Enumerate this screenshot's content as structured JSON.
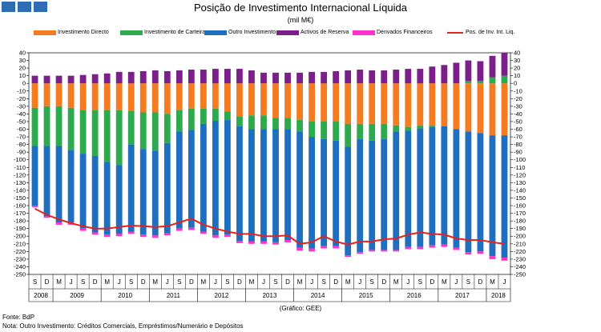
{
  "header": {
    "logo_icon": "bank-logo-squares-icon",
    "logo_color": "#2e6cb5"
  },
  "chart_data": {
    "type": "bar",
    "title": "Posição de Investimento Internacional Líquida",
    "subtitle": "(mil M€)",
    "stacked": true,
    "ylim": [
      -250,
      40
    ],
    "yticks_step": 10,
    "categories": [
      "2008-S",
      "2008-D",
      "2009-M",
      "2009-J",
      "2009-S",
      "2009-D",
      "2010-M",
      "2010-J",
      "2010-S",
      "2010-D",
      "2011-M",
      "2011-J",
      "2011-S",
      "2011-D",
      "2012-M",
      "2012-J",
      "2012-S",
      "2012-D",
      "2013-M",
      "2013-J",
      "2013-S",
      "2013-D",
      "2014-M",
      "2014-J",
      "2014-S",
      "2014-D",
      "2015-M",
      "2015-J",
      "2015-S",
      "2015-D",
      "2016-M",
      "2016-J",
      "2016-S",
      "2016-D",
      "2017-M",
      "2017-J",
      "2017-S",
      "2017-D",
      "2018-M",
      "2018-J"
    ],
    "tick_labels": [
      "S",
      "D",
      "M",
      "J",
      "S",
      "D",
      "M",
      "J",
      "S",
      "D",
      "M",
      "J",
      "S",
      "D",
      "M",
      "J",
      "S",
      "D",
      "M",
      "J",
      "S",
      "D",
      "M",
      "J",
      "S",
      "D",
      "M",
      "J",
      "S",
      "D",
      "M",
      "J",
      "S",
      "D",
      "M",
      "J",
      "S",
      "D",
      "M",
      "J"
    ],
    "year_labels": [
      {
        "label": "2008",
        "start": 0,
        "end": 1
      },
      {
        "label": "2009",
        "start": 2,
        "end": 5
      },
      {
        "label": "2010",
        "start": 6,
        "end": 9
      },
      {
        "label": "2011",
        "start": 10,
        "end": 13
      },
      {
        "label": "2012",
        "start": 14,
        "end": 17
      },
      {
        "label": "2013",
        "start": 18,
        "end": 21
      },
      {
        "label": "2014",
        "start": 22,
        "end": 25
      },
      {
        "label": "2015",
        "start": 26,
        "end": 29
      },
      {
        "label": "2016",
        "start": 30,
        "end": 33
      },
      {
        "label": "2017",
        "start": 34,
        "end": 37
      },
      {
        "label": "2018",
        "start": 38,
        "end": 39
      }
    ],
    "series": [
      {
        "name": "Investimento Directo",
        "kind": "bar",
        "color": "#f47b20",
        "values": [
          -32,
          -30,
          -30,
          -32,
          -35,
          -35,
          -35,
          -35,
          -36,
          -38,
          -38,
          -40,
          -35,
          -33,
          -33,
          -33,
          -37,
          -43,
          -42,
          -42,
          -45,
          -45,
          -48,
          -50,
          -50,
          -50,
          -53,
          -53,
          -53,
          -53,
          -55,
          -57,
          -55,
          -55,
          -56,
          -60,
          -63,
          -65,
          -68,
          -68
        ]
      },
      {
        "name": "Investimento de Carteira",
        "kind": "bar",
        "color": "#2eaa4e",
        "values": [
          -50,
          -52,
          -52,
          -55,
          -57,
          -60,
          -68,
          -72,
          -44,
          -48,
          -50,
          -38,
          -28,
          -28,
          -20,
          -16,
          -11,
          -13,
          -18,
          -18,
          -15,
          -15,
          -15,
          -20,
          -23,
          -25,
          -30,
          -20,
          -22,
          -20,
          -8,
          -5,
          -4,
          -2,
          0,
          0,
          3,
          3,
          8,
          10
        ]
      },
      {
        "name": "Outro Investimento",
        "kind": "bar",
        "color": "#1f6fc0",
        "values": [
          -78,
          -92,
          -100,
          -95,
          -98,
          -100,
          -95,
          -90,
          -114,
          -112,
          -111,
          -118,
          -127,
          -128,
          -141,
          -150,
          -150,
          -150,
          -147,
          -147,
          -148,
          -145,
          -152,
          -146,
          -140,
          -138,
          -142,
          -148,
          -143,
          -145,
          -155,
          -152,
          -155,
          -155,
          -155,
          -155,
          -158,
          -155,
          -158,
          -160
        ]
      },
      {
        "name": "Activos de Reserva",
        "kind": "bar",
        "color": "#7b1f8a",
        "values": [
          10,
          10,
          10,
          10,
          11,
          12,
          13,
          15,
          15,
          16,
          17,
          16,
          17,
          18,
          18,
          19,
          19,
          19,
          17,
          14,
          14,
          14,
          14,
          15,
          15,
          16,
          17,
          18,
          17,
          17,
          18,
          19,
          19,
          22,
          24,
          27,
          27,
          26,
          28,
          30
        ]
      },
      {
        "name": "Derivados Financeiros",
        "kind": "bar",
        "color": "#ff33cc",
        "values": [
          -2,
          -2,
          -3,
          -3,
          -3,
          -3,
          -3,
          -3,
          -3,
          -3,
          -3,
          -3,
          -3,
          -3,
          -3,
          -3,
          -3,
          -3,
          -3,
          -3,
          -3,
          -3,
          -4,
          -4,
          -3,
          -3,
          -2,
          -2,
          -2,
          -2,
          -2,
          -3,
          -3,
          -3,
          -3,
          -3,
          -3,
          -3,
          -4,
          -4
        ]
      },
      {
        "name": "Pos. de Inv. Int. Liq.",
        "kind": "line",
        "color": "#e8211a",
        "values": [
          -164,
          -172,
          -178,
          -183,
          -187,
          -190,
          -190,
          -188,
          -186,
          -187,
          -188,
          -187,
          -182,
          -177,
          -185,
          -190,
          -194,
          -197,
          -197,
          -200,
          -200,
          -199,
          -210,
          -208,
          -200,
          -207,
          -211,
          -207,
          -207,
          -204,
          -203,
          -198,
          -195,
          -197,
          -198,
          -203,
          -205,
          -205,
          -208,
          -210
        ]
      }
    ]
  },
  "source_note": "(Gráfico: GEE)",
  "fonte": "Fonte: BdP",
  "nota": "Nota: Outro Investimento: Créditos Comerciais, Empréstimos/Numerário e Depósitos"
}
